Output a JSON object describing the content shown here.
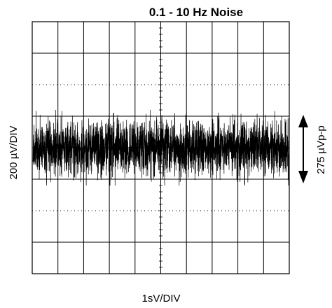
{
  "chart_data": {
    "type": "line",
    "title": "0.1 - 10 Hz Noise",
    "xlabel": "1sV/DIV",
    "ylabel": "200 µV/DIV",
    "annotation": "275 µVp-p",
    "x_divisions": 10,
    "y_divisions": 8,
    "xlim": [
      0,
      10
    ],
    "ylim": [
      -800,
      800
    ],
    "x_unit": "s",
    "y_unit": "µV",
    "grid": true,
    "series": [
      {
        "description": "broadband noise trace centered on the horizontal axis",
        "mean": 0,
        "peak_to_peak": 275,
        "color": "#000000"
      }
    ]
  },
  "colors": {
    "grid": "#000000",
    "trace": "#000000",
    "background": "#ffffff"
  }
}
